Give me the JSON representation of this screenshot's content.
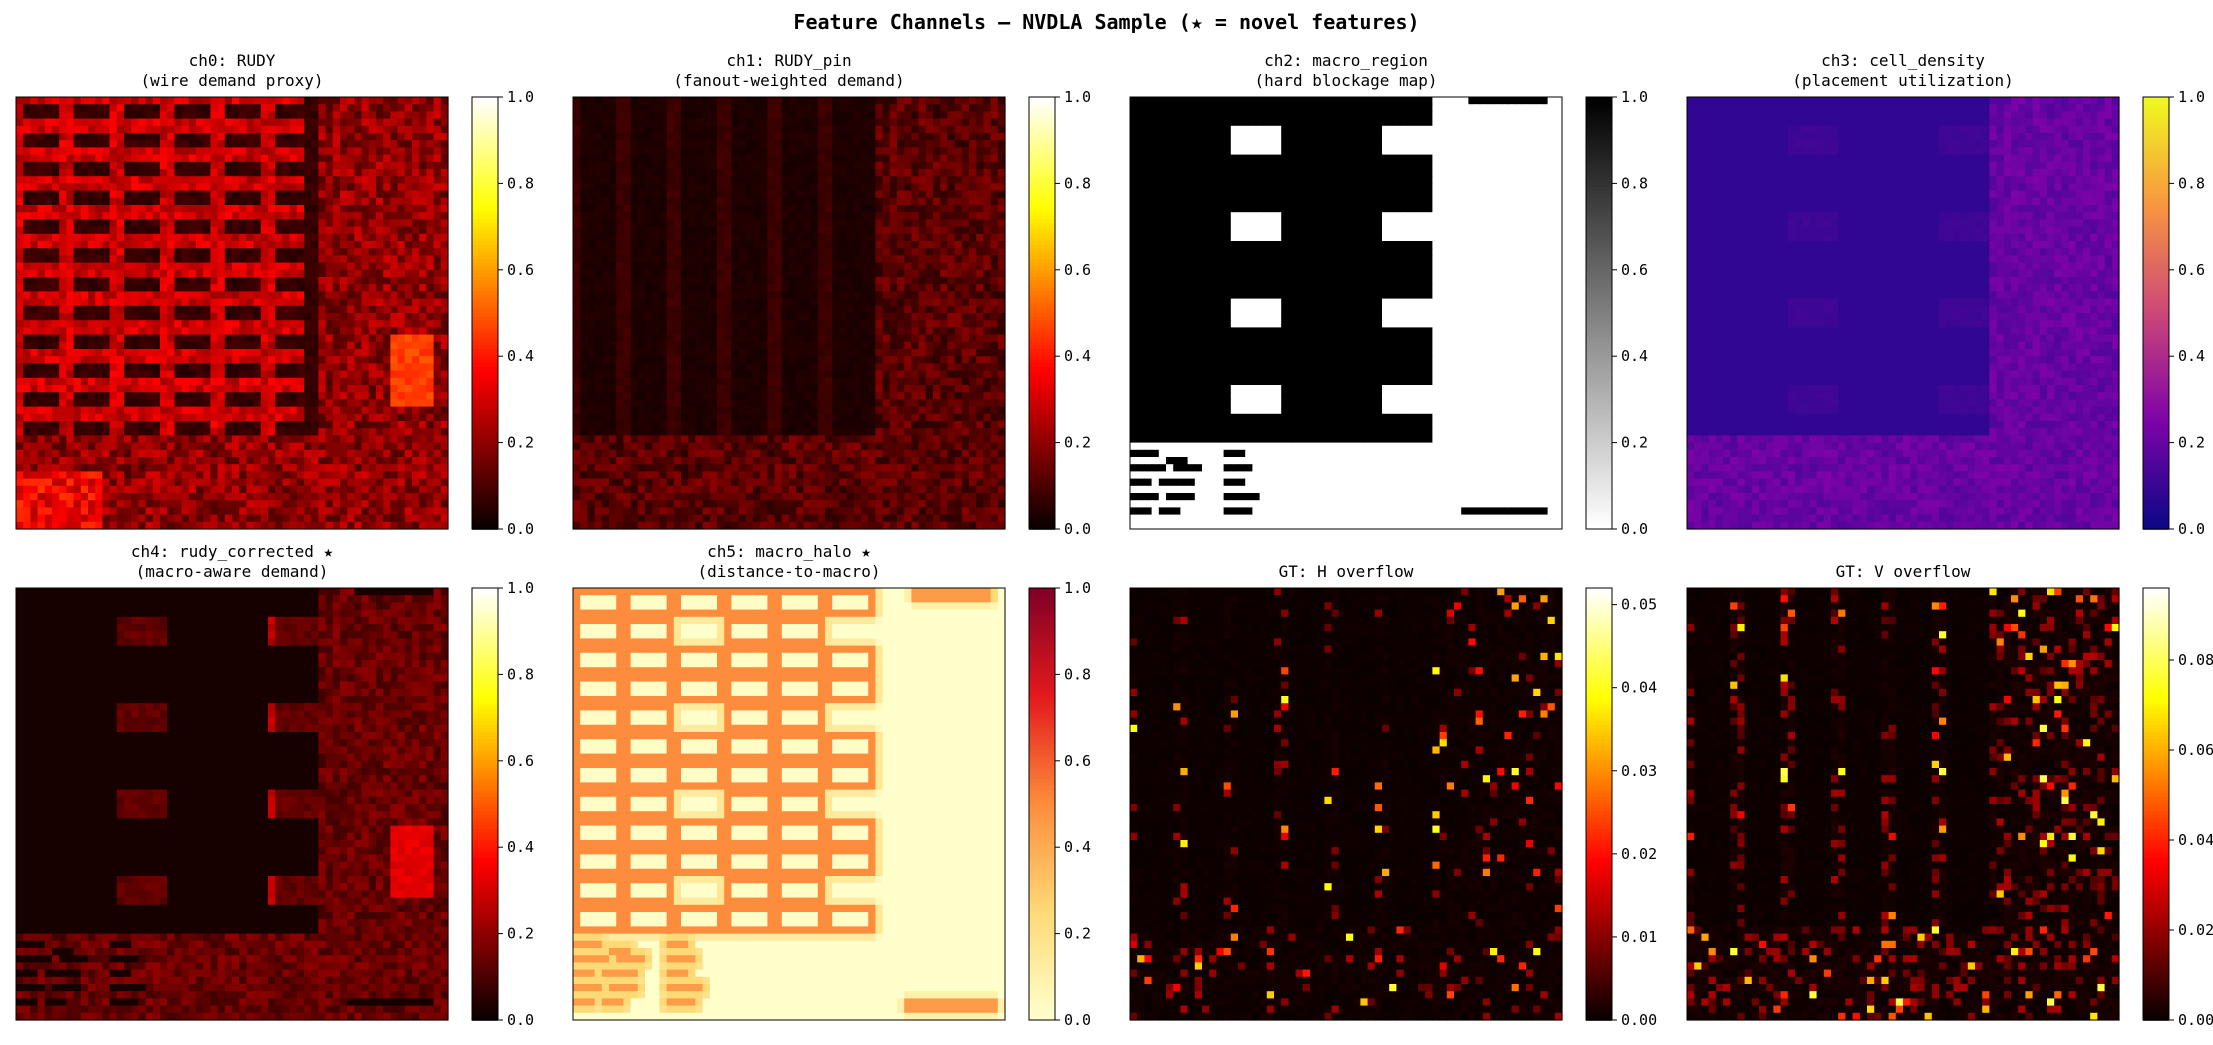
{
  "figure": {
    "suptitle": "Feature Channels — NVDLA Sample (★ = novel features)"
  },
  "chart_data": [
    {
      "type": "heatmap",
      "title": "ch0: RUDY",
      "subtitle": "(wire demand proxy)",
      "colormap": "hot",
      "colorbar": {
        "range": [
          0.0,
          1.0
        ],
        "ticks": [
          "0.0",
          "0.2",
          "0.4",
          "0.6",
          "0.8",
          "1.0"
        ]
      },
      "pattern": "rudy",
      "grid": false
    },
    {
      "type": "heatmap",
      "title": "ch1: RUDY_pin",
      "subtitle": "(fanout-weighted demand)",
      "colormap": "hot",
      "colorbar": {
        "range": [
          0.0,
          1.0
        ],
        "ticks": [
          "0.0",
          "0.2",
          "0.4",
          "0.6",
          "0.8",
          "1.0"
        ]
      },
      "pattern": "rudy_pin",
      "grid": false
    },
    {
      "type": "heatmap",
      "title": "ch2: macro_region",
      "subtitle": "(hard blockage map)",
      "colormap": "gray_r",
      "colorbar": {
        "range": [
          0.0,
          1.0
        ],
        "ticks": [
          "0.0",
          "0.2",
          "0.4",
          "0.6",
          "0.8",
          "1.0"
        ]
      },
      "pattern": "macro_region",
      "grid": false
    },
    {
      "type": "heatmap",
      "title": "ch3: cell_density",
      "subtitle": "(placement utilization)",
      "colormap": "plasma",
      "colorbar": {
        "range": [
          0.0,
          1.0
        ],
        "ticks": [
          "0.0",
          "0.2",
          "0.4",
          "0.6",
          "0.8",
          "1.0"
        ]
      },
      "pattern": "cell_density",
      "grid": false
    },
    {
      "type": "heatmap",
      "title": "ch4: rudy_corrected ★",
      "subtitle": "(macro-aware demand)",
      "colormap": "hot",
      "colorbar": {
        "range": [
          0.0,
          1.0
        ],
        "ticks": [
          "0.0",
          "0.2",
          "0.4",
          "0.6",
          "0.8",
          "1.0"
        ]
      },
      "pattern": "rudy_corrected",
      "grid": false
    },
    {
      "type": "heatmap",
      "title": "ch5: macro_halo ★",
      "subtitle": "(distance-to-macro)",
      "colormap": "YlOrRd",
      "colorbar": {
        "range": [
          0.0,
          1.0
        ],
        "ticks": [
          "0.0",
          "0.2",
          "0.4",
          "0.6",
          "0.8",
          "1.0"
        ]
      },
      "pattern": "macro_halo",
      "grid": false
    },
    {
      "type": "heatmap",
      "title": "GT: H overflow",
      "subtitle": "",
      "colormap": "hot",
      "colorbar": {
        "range": [
          0.0,
          0.052
        ],
        "ticks": [
          "0.00",
          "0.01",
          "0.02",
          "0.03",
          "0.04",
          "0.05"
        ]
      },
      "pattern": "h_overflow",
      "grid": false
    },
    {
      "type": "heatmap",
      "title": "GT: V overflow",
      "subtitle": "",
      "colormap": "hot",
      "colorbar": {
        "range": [
          0.0,
          0.096
        ],
        "ticks": [
          "0.00",
          "0.02",
          "0.04",
          "0.06",
          "0.08"
        ]
      },
      "pattern": "v_overflow",
      "grid": false
    }
  ]
}
